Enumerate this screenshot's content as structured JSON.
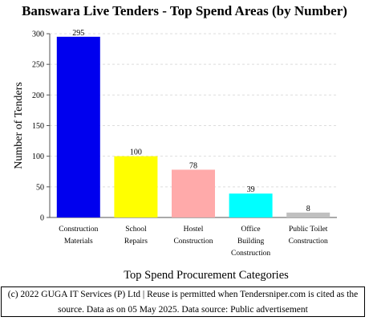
{
  "chart_data": {
    "type": "bar",
    "title": "Banswara Live Tenders - Top Spend Areas (by Number)",
    "xlabel": "Top Spend Procurement Categories",
    "ylabel": "Number of Tenders",
    "ylim": [
      0,
      300
    ],
    "yticks": [
      0,
      50,
      100,
      150,
      200,
      250,
      300
    ],
    "grid": true,
    "categories": [
      [
        "Construction",
        "Materials"
      ],
      [
        "School",
        "Repairs"
      ],
      [
        "Hostel",
        "Construction"
      ],
      [
        "Office",
        "Building",
        "Construction"
      ],
      [
        "Public Toilet",
        "Construction"
      ]
    ],
    "values": [
      295,
      100,
      78,
      39,
      8
    ],
    "colors": [
      "#0000ee",
      "#ffff00",
      "#ffaaaa",
      "#00ffff",
      "#c0c0c0"
    ]
  },
  "footer": {
    "line1": "(c) 2022 GUGA IT Services (P) Ltd | Reuse is permitted when Tendersniper.com is cited as the",
    "line2": "source. Data as on 05 May 2025. Data source: Public advertisement"
  }
}
